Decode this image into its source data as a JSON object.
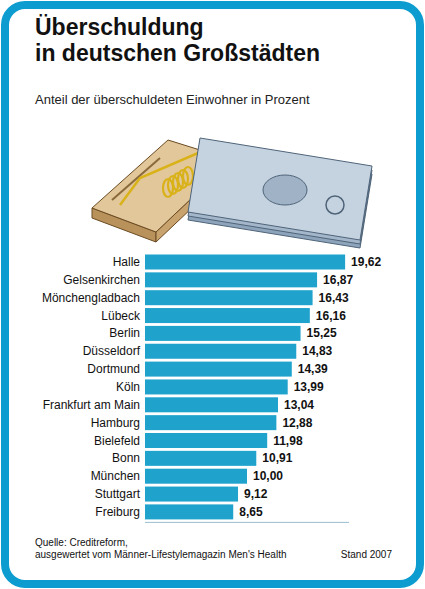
{
  "chart_data": {
    "type": "bar",
    "title": "Überschuldung in deutschen Großstädten",
    "subtitle": "Anteil der überschuldeten Einwohner in Prozent",
    "categories": [
      "Halle",
      "Gelsenkirchen",
      "Mönchengladbach",
      "Lübeck",
      "Berlin",
      "Düsseldorf",
      "Dortmund",
      "Köln",
      "Frankfurt am Main",
      "Hamburg",
      "Bielefeld",
      "Bonn",
      "München",
      "Stuttgart",
      "Freiburg"
    ],
    "values": [
      19.62,
      16.87,
      16.43,
      16.16,
      15.25,
      14.83,
      14.39,
      13.99,
      13.04,
      12.88,
      11.98,
      10.91,
      10.0,
      9.12,
      8.65
    ],
    "value_labels": [
      "19,62",
      "16,87",
      "16,43",
      "16,16",
      "15,25",
      "14,83",
      "14,39",
      "13,99",
      "13,04",
      "12,88",
      "11,98",
      "10,91",
      "10,00",
      "9,12",
      "8,65"
    ],
    "color": "#1fa2cc",
    "orientation": "horizontal",
    "data_labels": true,
    "tick_labels": "y",
    "grid": false,
    "xlim": [
      0,
      20
    ],
    "source": "Quelle: Creditreform, ausgewertet vom Männer-Lifestylemagazin Men's Health",
    "note": "Stand 2007"
  }
}
